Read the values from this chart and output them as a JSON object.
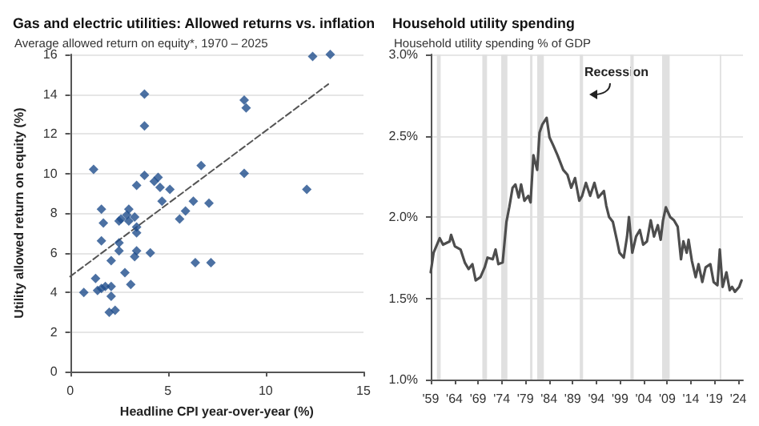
{
  "chart_data": [
    {
      "type": "scatter",
      "title": "Gas and electric utilities: Allowed returns vs. inflation",
      "subtitle": "Average allowed return on equity*, 1970 – 2025",
      "xlabel": "Headline CPI year-over-year (%)",
      "ylabel": "Utility allowed return on equity (%)",
      "xlim": [
        0,
        15
      ],
      "xticks": [
        0,
        5,
        10,
        15
      ],
      "ylim": [
        0,
        16
      ],
      "yticks": [
        0,
        2,
        4,
        6,
        8,
        10,
        12,
        14,
        16
      ],
      "grid": "y",
      "marker": "diamond",
      "series": [
        {
          "color": "#1f4e8c",
          "x": [
            12.4,
            13.3,
            3.8,
            3.8,
            8.9,
            9.0,
            1.2,
            3.8,
            8.9,
            6.7,
            12.1,
            4.3,
            4.5,
            3.4,
            4.6,
            5.1,
            4.7,
            6.3,
            7.1,
            1.6,
            3.0,
            5.9,
            5.6,
            3.3,
            2.6,
            2.9,
            1.7,
            2.5,
            3.0,
            3.4,
            3.4,
            1.6,
            2.5,
            2.5,
            2.1,
            3.4,
            3.3,
            4.1,
            6.4,
            7.2,
            2.8,
            1.3,
            3.1,
            1.4,
            1.6,
            1.8,
            2.1,
            0.7,
            2.1,
            2.0,
            2.3
          ],
          "values": [
            15.9,
            16.0,
            14.0,
            12.4,
            13.7,
            13.3,
            10.2,
            9.9,
            10.0,
            10.4,
            9.2,
            9.6,
            9.8,
            9.4,
            9.3,
            9.2,
            8.6,
            8.6,
            8.5,
            8.2,
            8.2,
            8.1,
            7.7,
            7.8,
            7.7,
            7.9,
            7.5,
            7.6,
            7.6,
            7.3,
            7.0,
            6.6,
            6.5,
            6.1,
            5.6,
            6.1,
            5.8,
            6.0,
            5.5,
            5.5,
            5.0,
            4.7,
            4.4,
            4.1,
            4.2,
            4.3,
            4.3,
            4.0,
            3.8,
            3.0,
            3.1
          ]
        },
        {
          "type": "line",
          "line_style": "dashed",
          "marker": "none",
          "color": "#555555",
          "x": [
            0,
            13.2
          ],
          "values": [
            4.8,
            14.5
          ]
        }
      ]
    },
    {
      "type": "line",
      "title": "Household utility spending",
      "subtitle": "Household utility spending % of GDP",
      "xlim": [
        1959,
        2025
      ],
      "ylim": [
        1,
        3
      ],
      "grid": "y",
      "marker": "none",
      "xticks": [
        {
          "value": 1959,
          "label": "'59"
        },
        {
          "value": 1964,
          "label": "'64"
        },
        {
          "value": 1969,
          "label": "'69"
        },
        {
          "value": 1974,
          "label": "'74"
        },
        {
          "value": 1979,
          "label": "'79"
        },
        {
          "value": 1984,
          "label": "'84"
        },
        {
          "value": 1989,
          "label": "'89"
        },
        {
          "value": 1994,
          "label": "'94"
        },
        {
          "value": 1999,
          "label": "'99"
        },
        {
          "value": 2004,
          "label": "'04"
        },
        {
          "value": 2009,
          "label": "'09"
        },
        {
          "value": 2014,
          "label": "'14"
        },
        {
          "value": 2019,
          "label": "'19"
        },
        {
          "value": 2024,
          "label": "'24"
        }
      ],
      "yticks": [
        {
          "value": 1,
          "label": "1.0%"
        },
        {
          "value": 1.5,
          "label": "1.5%"
        },
        {
          "value": 2,
          "label": "2.0%"
        },
        {
          "value": 2.5,
          "label": "2.5%"
        },
        {
          "value": 3,
          "label": "3.0%"
        }
      ],
      "bands": [
        {
          "axis": "x",
          "from": 1960.3,
          "to": 1961.1,
          "color": "#e0e0e0"
        },
        {
          "axis": "x",
          "from": 1969.9,
          "to": 1970.9,
          "color": "#e0e0e0"
        },
        {
          "axis": "x",
          "from": 1973.9,
          "to": 1975.2,
          "color": "#e0e0e0"
        },
        {
          "axis": "x",
          "from": 1980.0,
          "to": 1980.5,
          "color": "#e0e0e0"
        },
        {
          "axis": "x",
          "from": 1981.5,
          "to": 1982.9,
          "color": "#e0e0e0"
        },
        {
          "axis": "x",
          "from": 1990.5,
          "to": 1991.2,
          "color": "#e0e0e0"
        },
        {
          "axis": "x",
          "from": 2001.2,
          "to": 2001.9,
          "color": "#e0e0e0"
        },
        {
          "axis": "x",
          "from": 2007.9,
          "to": 2009.5,
          "color": "#e0e0e0"
        },
        {
          "axis": "x",
          "from": 2020.1,
          "to": 2020.4,
          "color": "#e0e0e0"
        }
      ],
      "annotations": [
        "Recession"
      ],
      "series": [
        {
          "color": "#4d4d4d",
          "x": [
            1959,
            1959.6,
            1960.9,
            1961.6,
            1963.0,
            1963.3,
            1964.1,
            1965.3,
            1966.2,
            1967.0,
            1967.8,
            1968.5,
            1969.5,
            1970.4,
            1971.0,
            1972.1,
            1972.7,
            1973.3,
            1974.2,
            1975.0,
            1975.6,
            1976.3,
            1976.9,
            1977.6,
            1978.1,
            1978.8,
            1979.6,
            1980.1,
            1980.7,
            1981.5,
            1982.0,
            1982.6,
            1983.5,
            1984.1,
            1984.9,
            1985.8,
            1987.0,
            1987.9,
            1988.7,
            1989.5,
            1990.4,
            1991.0,
            1991.8,
            1992.7,
            1993.6,
            1994.4,
            1995.6,
            1996.1,
            1996.7,
            1997.5,
            1998.4,
            1998.9,
            1999.8,
            2000.5,
            2000.9,
            2001.6,
            2002.4,
            2003.2,
            2003.9,
            2004.7,
            2005.5,
            2006.2,
            2007.0,
            2007.6,
            2008.1,
            2008.7,
            2009.6,
            2010.4,
            2011.2,
            2011.9,
            2012.4,
            2013.1,
            2013.5,
            2014.2,
            2015.0,
            2015.6,
            2016.4,
            2017.1,
            2018.1,
            2018.8,
            2019.6,
            2020.1,
            2020.7,
            2021.5,
            2022.2,
            2022.7,
            2023.3,
            2024.2,
            2024.7
          ],
          "values": [
            1.66,
            1.78,
            1.87,
            1.83,
            1.85,
            1.89,
            1.82,
            1.8,
            1.72,
            1.68,
            1.71,
            1.61,
            1.63,
            1.69,
            1.75,
            1.74,
            1.8,
            1.71,
            1.72,
            1.97,
            2.06,
            2.18,
            2.2,
            2.12,
            2.2,
            2.1,
            2.13,
            2.09,
            2.38,
            2.29,
            2.52,
            2.57,
            2.61,
            2.49,
            2.44,
            2.38,
            2.29,
            2.26,
            2.18,
            2.24,
            2.1,
            2.13,
            2.21,
            2.13,
            2.21,
            2.12,
            2.16,
            2.07,
            2.0,
            1.97,
            1.85,
            1.78,
            1.75,
            1.88,
            2.0,
            1.78,
            1.88,
            1.92,
            1.83,
            1.85,
            1.98,
            1.88,
            1.95,
            1.86,
            1.98,
            2.06,
            2.0,
            1.98,
            1.94,
            1.74,
            1.85,
            1.78,
            1.86,
            1.73,
            1.63,
            1.71,
            1.6,
            1.69,
            1.71,
            1.6,
            1.58,
            1.8,
            1.57,
            1.66,
            1.55,
            1.57,
            1.54,
            1.57,
            1.61
          ]
        }
      ]
    }
  ]
}
